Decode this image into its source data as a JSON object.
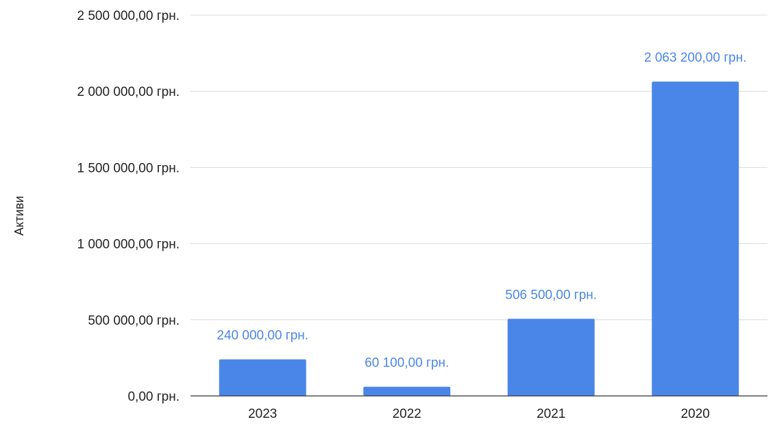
{
  "chart_data": {
    "type": "bar",
    "categories": [
      "2023",
      "2022",
      "2021",
      "2020"
    ],
    "values": [
      240000,
      60100,
      506500,
      2063200
    ],
    "data_labels": [
      "240 000,00 грн.",
      "60 100,00 грн.",
      "506 500,00 грн.",
      "2 063 200,00 грн."
    ],
    "ylabel": "Активи",
    "xlabel": "",
    "ylim": [
      0,
      2500000
    ],
    "yticks": [
      0,
      500000,
      1000000,
      1500000,
      2000000,
      2500000
    ],
    "ytick_labels": [
      "0,00 грн.",
      "500 000,00 грн.",
      "1 000 000,00 грн.",
      "1 500 000,00 грн.",
      "2 000 000,00 грн.",
      "2 500 000,00 грн."
    ],
    "grid": true,
    "legend": "none",
    "colors": {
      "bar": "#4a86e8",
      "data_label": "#4a86e8",
      "grid": "#d9d9d9",
      "axis": "#333333",
      "text": "#222222"
    }
  }
}
